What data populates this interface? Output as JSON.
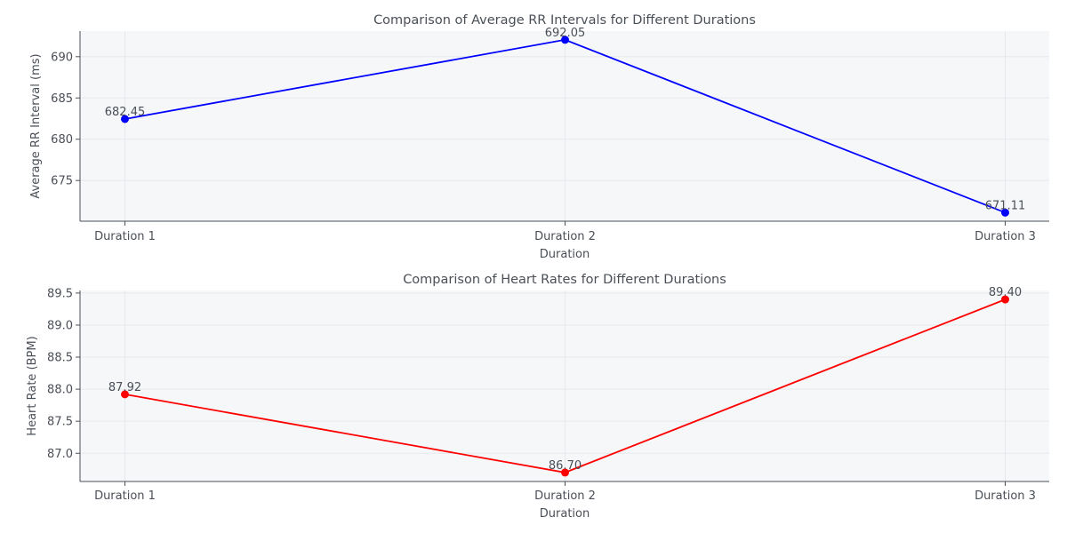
{
  "chart_data": [
    {
      "type": "line",
      "title": "Comparison of Average RR Intervals for Different Durations",
      "xlabel": "Duration",
      "ylabel": "Average RR Interval (ms)",
      "categories": [
        "Duration 1",
        "Duration 2",
        "Duration 3"
      ],
      "series": [
        {
          "values": [
            682.45,
            692.05,
            671.11
          ],
          "labels": [
            "682.45",
            "692.05",
            "671.11"
          ],
          "color": "#0000ff"
        }
      ],
      "yticks": [
        675,
        680,
        685,
        690
      ],
      "ytick_labels": [
        "675",
        "680",
        "685",
        "690"
      ],
      "ylim": [
        670.07,
        693.1
      ],
      "grid": true
    },
    {
      "type": "line",
      "title": "Comparison of Heart Rates for Different Durations",
      "xlabel": "Duration",
      "ylabel": "Heart Rate (BPM)",
      "categories": [
        "Duration 1",
        "Duration 2",
        "Duration 3"
      ],
      "series": [
        {
          "values": [
            87.92,
            86.7,
            89.4
          ],
          "labels": [
            "87.92",
            "86.70",
            "89.40"
          ],
          "color": "#ff0000"
        }
      ],
      "yticks": [
        87.0,
        87.5,
        88.0,
        88.5,
        89.0,
        89.5
      ],
      "ytick_labels": [
        "87.0",
        "87.5",
        "88.0",
        "88.5",
        "89.0",
        "89.5"
      ],
      "ylim": [
        86.56,
        89.54
      ],
      "grid": true
    }
  ],
  "colors": {
    "plot_background": "#f6f7f9",
    "grid": "#e6e8ec",
    "axis": "#4a4f57",
    "text": "#4a4f57"
  }
}
